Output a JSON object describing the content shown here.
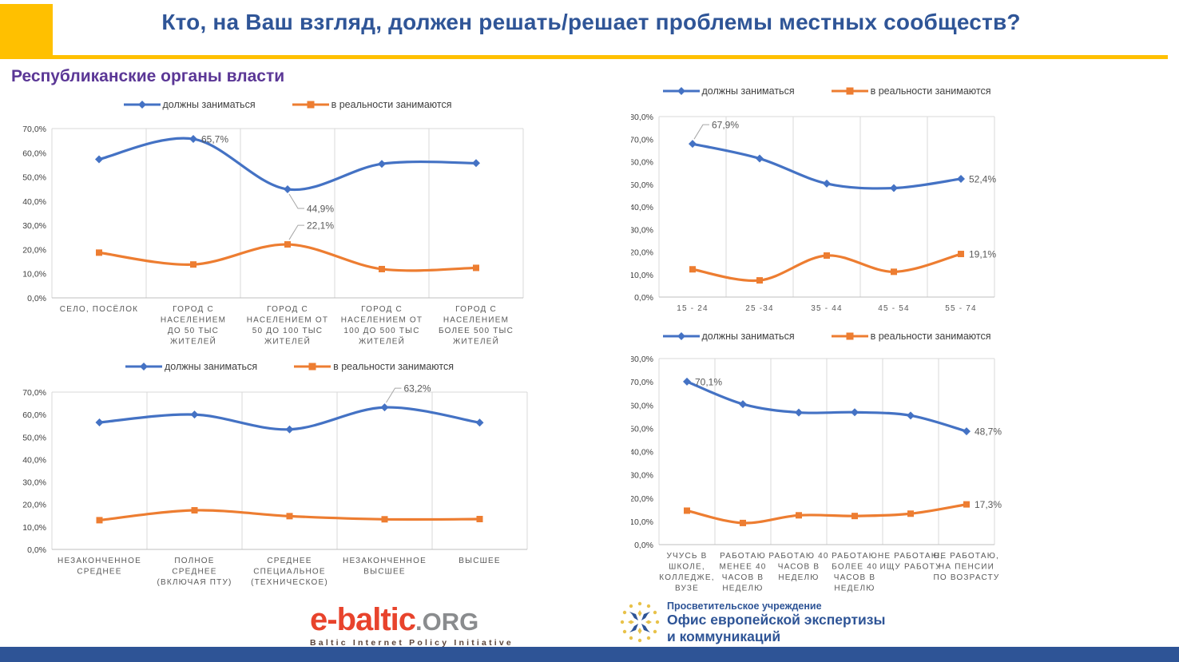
{
  "header": {
    "title": "Кто, на Ваш взгляд, должен решать/решает проблемы местных сообществ?"
  },
  "section": {
    "subtitle": "Республиканские органы власти"
  },
  "colors": {
    "series_should": "#4472C4",
    "series_reality": "#ED7D31",
    "title": "#2F5597",
    "subtitle": "#5B3796",
    "accent_yellow": "#FFC000",
    "footer_bar": "#2E5496",
    "gridline": "#D9D9D9",
    "axis_line": "#BFBFBF",
    "ytick_text": "#404040",
    "xlabel_text": "#595959",
    "datalabel_text": "#595959",
    "leader_line": "#A6A6A6"
  },
  "chart_data": [
    {
      "type": "line",
      "name": "by-settlement",
      "ylim": [
        0,
        70
      ],
      "ytick_step": 10,
      "grid": "vertical",
      "legend_position": "top",
      "categories": [
        [
          "СЕЛО, ПОСЁЛОК"
        ],
        [
          "ГОРОД С",
          "НАСЕЛЕНИЕМ",
          "ДО 50 ТЫС",
          "ЖИТЕЛЕЙ"
        ],
        [
          "ГОРОД С",
          "НАСЕЛЕНИЕМ ОТ",
          "50 ДО 100 ТЫС",
          "ЖИТЕЛЕЙ"
        ],
        [
          "ГОРОД С",
          "НАСЕЛЕНИЕМ ОТ",
          "100 ДО 500 ТЫС",
          "ЖИТЕЛЕЙ"
        ],
        [
          "ГОРОД С",
          "НАСЕЛЕНИЕМ",
          "БОЛЕЕ 500 ТЫС",
          "ЖИТЕЛЕЙ"
        ]
      ],
      "series": [
        {
          "name": "должны заниматься",
          "marker": "diamond",
          "color": "#4472C4",
          "values": [
            57.3,
            65.7,
            44.9,
            55.4,
            55.7
          ]
        },
        {
          "name": "в реальности занимаются",
          "marker": "square",
          "color": "#ED7D31",
          "values": [
            18.7,
            13.8,
            22.1,
            11.9,
            12.4
          ]
        }
      ],
      "annotations": [
        {
          "series": 0,
          "index": 1,
          "text": "65,7%",
          "mode": "right"
        },
        {
          "series": 0,
          "index": 2,
          "text": "44,9%",
          "mode": "elbow-down"
        },
        {
          "series": 1,
          "index": 2,
          "text": "22,1%",
          "mode": "elbow-up"
        }
      ]
    },
    {
      "type": "line",
      "name": "by-age",
      "ylim": [
        0,
        80
      ],
      "ytick_step": 10,
      "grid": "vertical",
      "legend_position": "top",
      "categories": [
        [
          "15 - 24"
        ],
        [
          "25 -34"
        ],
        [
          "35 - 44"
        ],
        [
          "45 - 54"
        ],
        [
          "55 - 74"
        ]
      ],
      "series": [
        {
          "name": "должны заниматься",
          "marker": "diamond",
          "color": "#4472C4",
          "values": [
            67.9,
            61.4,
            50.3,
            48.3,
            52.4
          ]
        },
        {
          "name": "в реальности занимаются",
          "marker": "square",
          "color": "#ED7D31",
          "values": [
            12.3,
            7.4,
            18.4,
            11.2,
            19.1
          ]
        }
      ],
      "annotations": [
        {
          "series": 0,
          "index": 0,
          "text": "67,9%",
          "mode": "elbow-up"
        },
        {
          "series": 0,
          "index": 4,
          "text": "52,4%",
          "mode": "right"
        },
        {
          "series": 1,
          "index": 4,
          "text": "19,1%",
          "mode": "right"
        }
      ]
    },
    {
      "type": "line",
      "name": "by-education",
      "ylim": [
        0,
        70
      ],
      "ytick_step": 10,
      "grid": "vertical",
      "legend_position": "top",
      "categories": [
        [
          "НЕЗАКОНЧЕННОЕ",
          "СРЕДНЕЕ"
        ],
        [
          "ПОЛНОЕ",
          "СРЕДНЕЕ",
          "(ВКЛЮЧАЯ ПТУ)"
        ],
        [
          "СРЕДНЕЕ",
          "СПЕЦИАЛЬНОЕ",
          "(ТЕХНИЧЕСКОЕ)"
        ],
        [
          "НЕЗАКОНЧЕННОЕ",
          "ВЫСШЕЕ"
        ],
        [
          "ВЫСШЕЕ"
        ]
      ],
      "series": [
        {
          "name": "должны заниматься",
          "marker": "diamond",
          "color": "#4472C4",
          "values": [
            56.5,
            60.0,
            53.4,
            63.2,
            56.4
          ]
        },
        {
          "name": "в реальности занимаются",
          "marker": "square",
          "color": "#ED7D31",
          "values": [
            13.0,
            17.4,
            14.8,
            13.4,
            13.5
          ]
        }
      ],
      "annotations": [
        {
          "series": 0,
          "index": 3,
          "text": "63,2%",
          "mode": "elbow-up"
        }
      ]
    },
    {
      "type": "line",
      "name": "by-employment",
      "ylim": [
        0,
        80
      ],
      "ytick_step": 10,
      "grid": "vertical",
      "legend_position": "top",
      "categories": [
        [
          "УЧУСЬ В",
          "ШКОЛЕ,",
          "КОЛЛЕДЖЕ,",
          "ВУЗЕ"
        ],
        [
          "РАБОТАЮ",
          "МЕНЕЕ 40",
          "ЧАСОВ В",
          "НЕДЕЛЮ"
        ],
        [
          "РАБОТАЮ 40",
          "ЧАСОВ В",
          "НЕДЕЛЮ"
        ],
        [
          "РАБОТАЮ",
          "БОЛЕЕ 40",
          "ЧАСОВ В",
          "НЕДЕЛЮ"
        ],
        [
          "НЕ РАБОТАЮ,",
          "ИЩУ РАБОТУ"
        ],
        [
          "НЕ РАБОТАЮ,",
          "НА ПЕНСИИ",
          "ПО ВОЗРАСТУ"
        ]
      ],
      "series": [
        {
          "name": "должны заниматься",
          "marker": "diamond",
          "color": "#4472C4",
          "values": [
            70.1,
            60.4,
            56.8,
            56.9,
            55.5,
            48.7
          ]
        },
        {
          "name": "в реальности занимаются",
          "marker": "square",
          "color": "#ED7D31",
          "values": [
            14.6,
            9.3,
            12.6,
            12.3,
            13.3,
            17.3
          ]
        }
      ],
      "annotations": [
        {
          "series": 0,
          "index": 0,
          "text": "70,1%",
          "mode": "right"
        },
        {
          "series": 0,
          "index": 5,
          "text": "48,7%",
          "mode": "right"
        },
        {
          "series": 1,
          "index": 5,
          "text": "17,3%",
          "mode": "right"
        }
      ]
    }
  ],
  "footer": {
    "ebaltic": {
      "name": "e-baltic",
      "tld": ".ORG",
      "tagline": "Baltic Internet Policy Initiative"
    },
    "office": {
      "line1": "Просветительское учреждение",
      "line2": "Офис европейской экспертизы",
      "line3": "и коммуникаций"
    }
  }
}
